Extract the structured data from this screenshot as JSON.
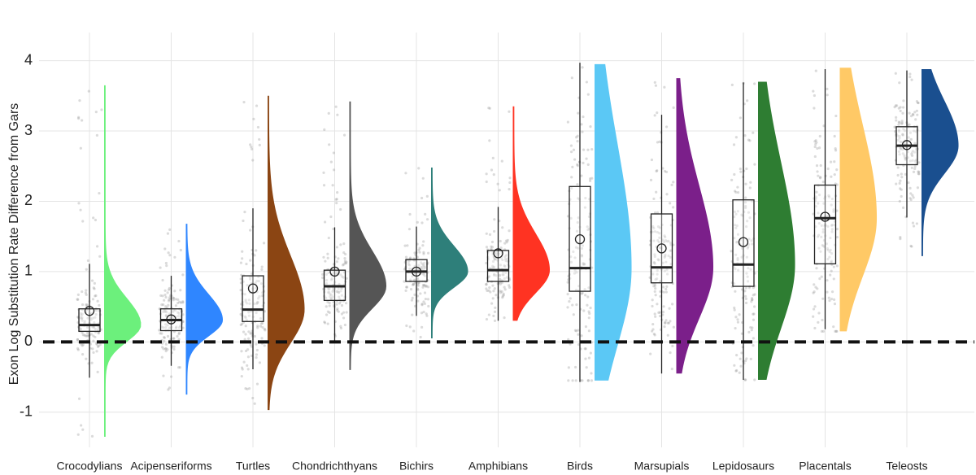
{
  "chart_data": {
    "type": "raincloud",
    "y_label": "Exon Log Substitution Rate Difference from Gars",
    "ylim": [
      -1.5,
      4.4
    ],
    "yticks": [
      -1,
      0,
      1,
      2,
      3,
      4
    ],
    "grid": true,
    "reference_line": 0,
    "categories": [
      "Crocodylians",
      "Acipenseriforms",
      "Turtles",
      "Chondrichthyans",
      "Bichirs",
      "Amphibians",
      "Birds",
      "Marsupials",
      "Lepidosaurs",
      "Placentals",
      "Teleosts"
    ],
    "colors": [
      "#6cf07c",
      "#2f86ff",
      "#8b4513",
      "#555555",
      "#2e7f7a",
      "#ff3322",
      "#5bc8f5",
      "#7b1f8a",
      "#2e7d32",
      "#ffc966",
      "#1a4f8f"
    ],
    "whisker_low": [
      -0.51,
      -0.34,
      -0.39,
      0.0,
      0.37,
      0.3,
      -0.57,
      -0.45,
      -0.54,
      0.18,
      1.77
    ],
    "q1": [
      0.15,
      0.16,
      0.29,
      0.59,
      0.86,
      0.86,
      0.72,
      0.84,
      0.79,
      1.11,
      2.52
    ],
    "median": [
      0.24,
      0.31,
      0.46,
      0.79,
      1.0,
      1.02,
      1.05,
      1.06,
      1.1,
      1.76,
      2.79
    ],
    "q3": [
      0.47,
      0.47,
      0.94,
      1.02,
      1.17,
      1.3,
      2.21,
      1.82,
      2.02,
      2.23,
      3.06
    ],
    "whisker_high": [
      1.11,
      0.94,
      1.9,
      1.63,
      1.64,
      1.92,
      3.97,
      3.23,
      3.69,
      3.88,
      3.86
    ],
    "mean": [
      0.44,
      0.32,
      0.76,
      1.0,
      1.0,
      1.26,
      1.46,
      1.33,
      1.42,
      1.78,
      2.8
    ],
    "violin_min": [
      -1.35,
      -0.75,
      -0.97,
      -0.4,
      0.05,
      0.3,
      -0.55,
      -0.45,
      -0.54,
      0.15,
      1.22
    ],
    "violin_max": [
      3.65,
      1.68,
      3.5,
      3.42,
      2.48,
      3.35,
      3.95,
      3.75,
      3.7,
      3.9,
      3.88
    ]
  }
}
